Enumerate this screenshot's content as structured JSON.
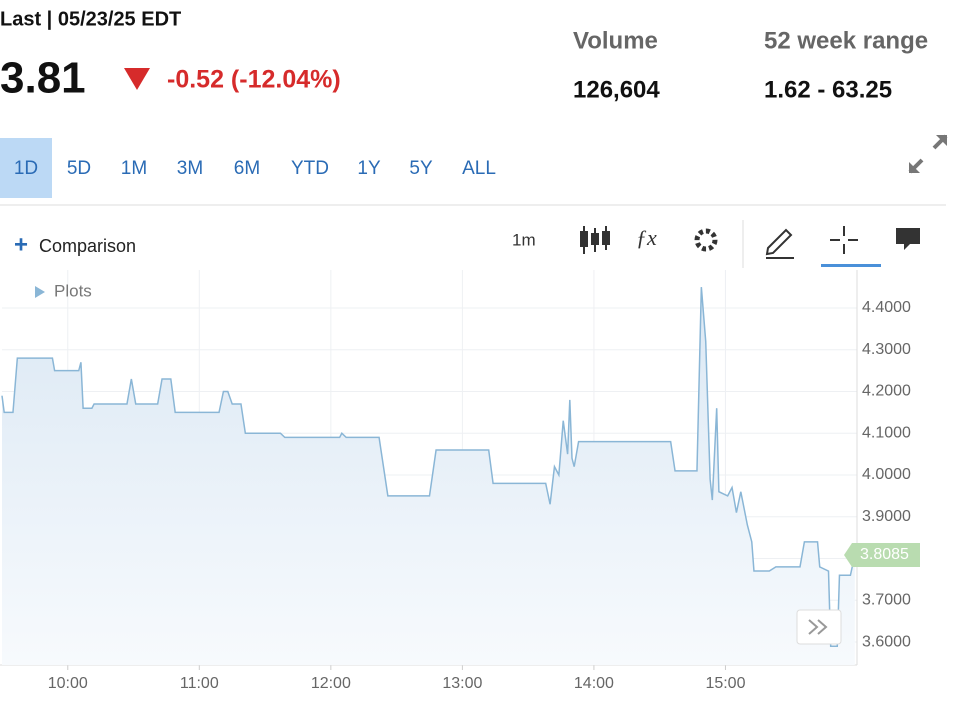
{
  "header": {
    "last_label": "Last | 05/23/25 EDT",
    "price": "3.81",
    "change": "-0.52 (-12.04%)",
    "volume_label": "Volume",
    "volume": "126,604",
    "range_label": "52 week range",
    "range": "1.62 - 63.25"
  },
  "ranges": [
    "1D",
    "5D",
    "1M",
    "3M",
    "6M",
    "YTD",
    "1Y",
    "5Y",
    "ALL"
  ],
  "toolbar": {
    "comparison": "Comparison",
    "interval": "1m",
    "plots": "Plots"
  },
  "chart_data": {
    "type": "line",
    "color": "#8ab6d6",
    "x": [
      "09:30",
      "09:31",
      "09:35",
      "09:37",
      "09:53",
      "09:54",
      "10:05",
      "10:06",
      "10:07",
      "10:11",
      "10:12",
      "10:27",
      "10:29",
      "10:31",
      "10:41",
      "10:43",
      "10:47",
      "10:49",
      "11:09",
      "11:11",
      "11:13",
      "11:15",
      "11:19",
      "11:21",
      "11:37",
      "11:39",
      "11:48",
      "12:04",
      "12:05",
      "12:07",
      "12:22",
      "12:24",
      "12:26",
      "12:45",
      "12:48",
      "13:12",
      "13:14",
      "13:38",
      "13:40",
      "13:42",
      "13:44",
      "13:46",
      "13:48",
      "13:49",
      "13:50",
      "13:51",
      "13:53",
      "14:35",
      "14:37",
      "14:47",
      "14:49",
      "14:51",
      "14:53",
      "14:54",
      "14:56",
      "14:57",
      "15:01",
      "15:03",
      "15:05",
      "15:07",
      "15:10",
      "15:12",
      "15:13",
      "15:20",
      "15:23",
      "15:34",
      "15:36",
      "15:42",
      "15:43",
      "15:47",
      "15:48",
      "15:51",
      "15:52",
      "15:57",
      "15:59"
    ],
    "values": [
      4.19,
      4.15,
      4.15,
      4.28,
      4.28,
      4.25,
      4.25,
      4.27,
      4.16,
      4.16,
      4.17,
      4.17,
      4.23,
      4.17,
      4.17,
      4.23,
      4.23,
      4.15,
      4.15,
      4.2,
      4.2,
      4.17,
      4.17,
      4.1,
      4.1,
      4.09,
      4.09,
      4.09,
      4.1,
      4.09,
      4.09,
      4.02,
      3.95,
      3.95,
      4.06,
      4.06,
      3.98,
      3.98,
      3.93,
      4.02,
      4.0,
      4.13,
      4.05,
      4.18,
      4.04,
      4.02,
      4.08,
      4.08,
      4.01,
      4.01,
      4.45,
      4.32,
      3.99,
      3.94,
      4.16,
      3.96,
      3.95,
      3.97,
      3.91,
      3.96,
      3.88,
      3.84,
      3.77,
      3.77,
      3.78,
      3.78,
      3.84,
      3.84,
      3.78,
      3.77,
      3.59,
      3.59,
      3.76,
      3.76,
      3.8085
    ],
    "last_price": 3.8085,
    "xlim": [
      "09:30",
      "16:00"
    ],
    "xticks": [
      "10:00",
      "11:00",
      "12:00",
      "13:00",
      "14:00",
      "15:00"
    ],
    "ylim": [
      3.545,
      4.491
    ],
    "yticks": [
      {
        "value": 3.6,
        "label": "3.6000"
      },
      {
        "value": 3.7,
        "label": "3.7000"
      },
      {
        "value": 3.8,
        "label": "3.8000"
      },
      {
        "value": 3.9,
        "label": "3.9000"
      },
      {
        "value": 4.0,
        "label": "4.0000"
      },
      {
        "value": 4.1,
        "label": "4.1000"
      },
      {
        "value": 4.2,
        "label": "4.2000"
      },
      {
        "value": 4.3,
        "label": "4.3000"
      },
      {
        "value": 4.4,
        "label": "4.4000"
      }
    ],
    "grid": true
  }
}
